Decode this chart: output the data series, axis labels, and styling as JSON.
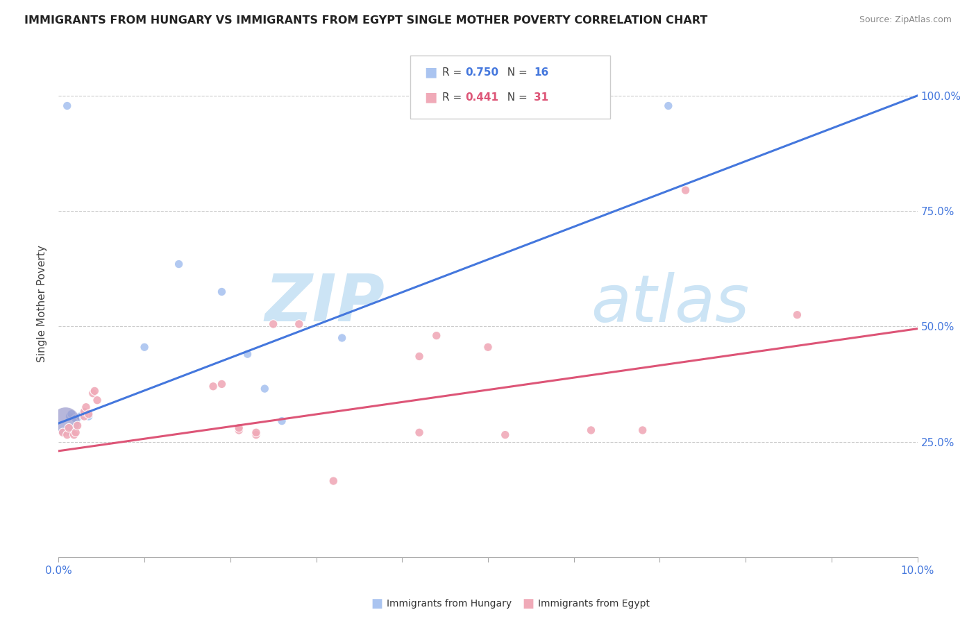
{
  "title": "IMMIGRANTS FROM HUNGARY VS IMMIGRANTS FROM EGYPT SINGLE MOTHER POVERTY CORRELATION CHART",
  "source": "Source: ZipAtlas.com",
  "ylabel": "Single Mother Poverty",
  "R_hungary": 0.75,
  "N_hungary": 16,
  "R_egypt": 0.441,
  "N_egypt": 31,
  "color_hungary": "#aac4f0",
  "color_egypt": "#f0aab8",
  "color_hungary_line": "#4477dd",
  "color_egypt_line": "#dd5577",
  "color_hungary_bubble": "#9999cc",
  "hungary_scatter": [
    [
      0.0008,
      0.295
    ],
    [
      0.0013,
      0.305
    ],
    [
      0.0015,
      0.31
    ],
    [
      0.002,
      0.3
    ],
    [
      0.0025,
      0.305
    ],
    [
      0.003,
      0.315
    ],
    [
      0.0035,
      0.305
    ],
    [
      0.01,
      0.455
    ],
    [
      0.014,
      0.635
    ],
    [
      0.019,
      0.575
    ],
    [
      0.022,
      0.44
    ],
    [
      0.024,
      0.365
    ],
    [
      0.026,
      0.295
    ],
    [
      0.033,
      0.475
    ],
    [
      0.071,
      0.978
    ],
    [
      0.001,
      0.978
    ]
  ],
  "hungary_sizes": [
    80,
    80,
    80,
    80,
    80,
    80,
    80,
    80,
    80,
    80,
    80,
    80,
    80,
    80,
    80,
    80
  ],
  "hungary_bubble_idx": 0,
  "hungary_bubble_size": 900,
  "egypt_scatter": [
    [
      0.0005,
      0.27
    ],
    [
      0.001,
      0.265
    ],
    [
      0.0012,
      0.28
    ],
    [
      0.0018,
      0.265
    ],
    [
      0.002,
      0.27
    ],
    [
      0.0022,
      0.285
    ],
    [
      0.003,
      0.305
    ],
    [
      0.003,
      0.315
    ],
    [
      0.0032,
      0.325
    ],
    [
      0.0035,
      0.31
    ],
    [
      0.004,
      0.355
    ],
    [
      0.0042,
      0.36
    ],
    [
      0.0045,
      0.34
    ],
    [
      0.018,
      0.37
    ],
    [
      0.019,
      0.375
    ],
    [
      0.021,
      0.275
    ],
    [
      0.021,
      0.28
    ],
    [
      0.023,
      0.265
    ],
    [
      0.023,
      0.27
    ],
    [
      0.025,
      0.505
    ],
    [
      0.028,
      0.505
    ],
    [
      0.032,
      0.165
    ],
    [
      0.042,
      0.435
    ],
    [
      0.042,
      0.27
    ],
    [
      0.044,
      0.48
    ],
    [
      0.05,
      0.455
    ],
    [
      0.052,
      0.265
    ],
    [
      0.062,
      0.275
    ],
    [
      0.068,
      0.275
    ],
    [
      0.073,
      0.795
    ],
    [
      0.086,
      0.525
    ]
  ],
  "egypt_sizes": [
    80,
    80,
    80,
    80,
    80,
    80,
    80,
    80,
    80,
    80,
    80,
    80,
    80,
    80,
    80,
    80,
    80,
    80,
    80,
    80,
    80,
    80,
    80,
    80,
    80,
    80,
    80,
    80,
    80,
    80,
    80
  ],
  "hungary_line": [
    [
      0.0,
      0.29
    ],
    [
      0.1,
      1.0
    ]
  ],
  "egypt_line": [
    [
      0.0,
      0.23
    ],
    [
      0.1,
      0.495
    ]
  ],
  "xlim": [
    0.0,
    0.1
  ],
  "ylim": [
    0.0,
    1.1
  ],
  "yticks": [
    0.25,
    0.5,
    0.75,
    1.0
  ],
  "ytick_labels": [
    "25.0%",
    "50.0%",
    "75.0%",
    "100.0%"
  ],
  "xtick_labels_left": "0.0%",
  "xtick_labels_right": "10.0%",
  "background_color": "#ffffff",
  "grid_color": "#cccccc",
  "watermark_zip": "ZIP",
  "watermark_atlas": "atlas",
  "watermark_color": "#cce4f5"
}
